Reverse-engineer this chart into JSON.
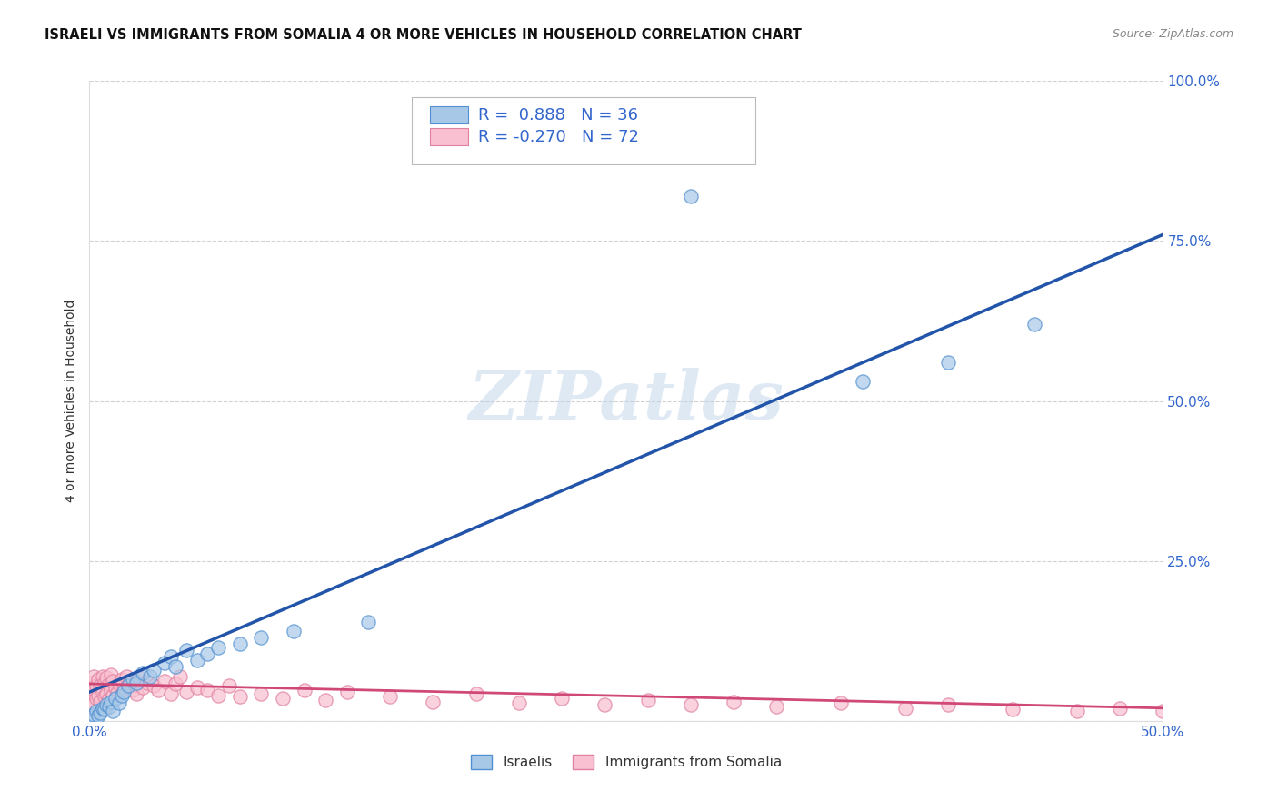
{
  "title": "ISRAELI VS IMMIGRANTS FROM SOMALIA 4 OR MORE VEHICLES IN HOUSEHOLD CORRELATION CHART",
  "source": "Source: ZipAtlas.com",
  "ylabel": "4 or more Vehicles in Household",
  "xmin": 0.0,
  "xmax": 0.5,
  "ymin": 0.0,
  "ymax": 1.0,
  "israelis_R": 0.888,
  "israelis_N": 36,
  "somalia_R": -0.27,
  "somalia_N": 72,
  "israelis_color": "#a8c8e8",
  "israelis_edge_color": "#5090d0",
  "israelis_line_color": "#2255aa",
  "somalia_color": "#f8c0d0",
  "somalia_edge_color": "#e080a0",
  "somalia_line_color": "#d04878",
  "legend_text_color": "#3366cc",
  "axis_label_color": "#3366cc",
  "background_color": "#ffffff",
  "grid_color": "#cccccc",
  "watermark": "ZIPatlas",
  "israelis_x": [
    0.001,
    0.002,
    0.003,
    0.004,
    0.005,
    0.006,
    0.007,
    0.008,
    0.009,
    0.01,
    0.011,
    0.012,
    0.014,
    0.015,
    0.016,
    0.018,
    0.02,
    0.022,
    0.025,
    0.028,
    0.03,
    0.035,
    0.038,
    0.04,
    0.045,
    0.05,
    0.055,
    0.06,
    0.07,
    0.08,
    0.095,
    0.13,
    0.28,
    0.36,
    0.4,
    0.44
  ],
  "israelis_y": [
    0.005,
    0.01,
    0.015,
    0.008,
    0.012,
    0.02,
    0.018,
    0.025,
    0.022,
    0.03,
    0.015,
    0.035,
    0.028,
    0.04,
    0.045,
    0.055,
    0.065,
    0.06,
    0.075,
    0.07,
    0.08,
    0.09,
    0.1,
    0.085,
    0.11,
    0.095,
    0.105,
    0.115,
    0.12,
    0.13,
    0.14,
    0.155,
    0.82,
    0.53,
    0.56,
    0.62
  ],
  "somalia_x": [
    0.001,
    0.001,
    0.001,
    0.002,
    0.002,
    0.002,
    0.003,
    0.003,
    0.004,
    0.004,
    0.005,
    0.005,
    0.006,
    0.006,
    0.007,
    0.007,
    0.008,
    0.008,
    0.009,
    0.009,
    0.01,
    0.01,
    0.011,
    0.011,
    0.012,
    0.013,
    0.014,
    0.015,
    0.016,
    0.017,
    0.018,
    0.019,
    0.02,
    0.021,
    0.022,
    0.023,
    0.025,
    0.027,
    0.03,
    0.032,
    0.035,
    0.038,
    0.04,
    0.042,
    0.045,
    0.05,
    0.055,
    0.06,
    0.065,
    0.07,
    0.08,
    0.09,
    0.1,
    0.11,
    0.12,
    0.14,
    0.16,
    0.18,
    0.2,
    0.22,
    0.24,
    0.26,
    0.28,
    0.3,
    0.32,
    0.35,
    0.38,
    0.4,
    0.43,
    0.46,
    0.48,
    0.5
  ],
  "somalia_y": [
    0.03,
    0.045,
    0.06,
    0.025,
    0.05,
    0.07,
    0.035,
    0.055,
    0.04,
    0.065,
    0.03,
    0.055,
    0.045,
    0.07,
    0.038,
    0.06,
    0.042,
    0.068,
    0.035,
    0.058,
    0.048,
    0.072,
    0.04,
    0.062,
    0.052,
    0.044,
    0.058,
    0.065,
    0.05,
    0.07,
    0.055,
    0.062,
    0.048,
    0.056,
    0.042,
    0.068,
    0.052,
    0.06,
    0.055,
    0.048,
    0.062,
    0.042,
    0.058,
    0.07,
    0.045,
    0.052,
    0.048,
    0.04,
    0.055,
    0.038,
    0.042,
    0.035,
    0.048,
    0.032,
    0.045,
    0.038,
    0.03,
    0.042,
    0.028,
    0.035,
    0.025,
    0.032,
    0.025,
    0.03,
    0.022,
    0.028,
    0.02,
    0.025,
    0.018,
    0.015,
    0.02,
    0.015
  ],
  "blue_line_x0": 0.0,
  "blue_line_y0": 0.045,
  "blue_line_x1": 0.5,
  "blue_line_y1": 0.76,
  "pink_line_x0": 0.0,
  "pink_line_y0": 0.058,
  "pink_line_x1": 0.5,
  "pink_line_y1": 0.02
}
